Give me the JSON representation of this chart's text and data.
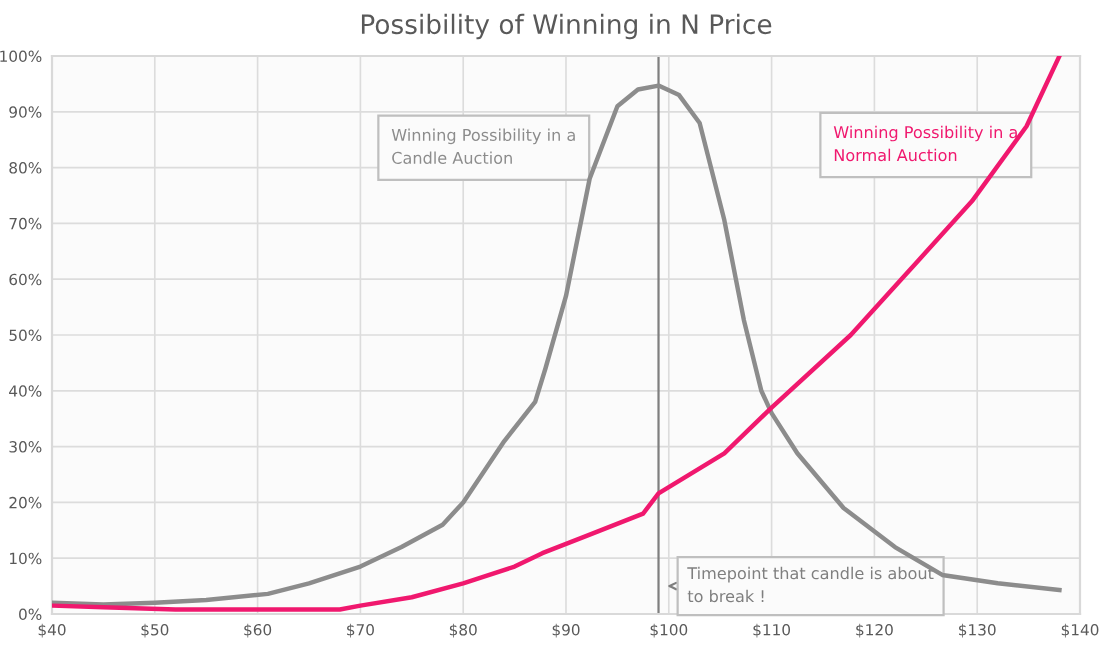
{
  "chart_data": {
    "type": "line",
    "title": "Possibility of Winning in N Price",
    "series": [
      {
        "name": "Winning Possibility in a Candle Auction",
        "color": "#8c8c8c",
        "x": [
          40,
          45,
          50,
          55,
          61,
          65,
          70,
          74,
          78,
          80,
          84,
          87,
          88,
          90,
          92.3,
          95,
          97,
          99,
          101,
          103,
          105.4,
          107.3,
          109,
          110,
          112.5,
          117,
          122,
          126.6,
          132,
          138
        ],
        "values": [
          2,
          1.7,
          2,
          2.5,
          3.6,
          5.5,
          8.5,
          12,
          16,
          20,
          31,
          38,
          44,
          57,
          78,
          91,
          94,
          94.7,
          93,
          88,
          70.6,
          52.7,
          40,
          36,
          28.8,
          19,
          12,
          7,
          5.5,
          4.3
        ]
      },
      {
        "name": "Winning Possibility in a Normal Auction",
        "color": "#f0186e",
        "x": [
          40,
          45,
          52,
          60,
          68,
          70,
          75,
          80,
          85,
          87.7,
          92,
          97.5,
          99,
          105.4,
          110,
          117.7,
          124.3,
          129.5,
          134.8,
          138
        ],
        "values": [
          1.5,
          1.2,
          0.8,
          0.8,
          0.8,
          1.5,
          3,
          5.5,
          8.5,
          10.9,
          14,
          18,
          21.6,
          28.8,
          37,
          50,
          63.4,
          74,
          87.4,
          100
        ]
      }
    ],
    "xlim": [
      40,
      140
    ],
    "ylim": [
      0,
      100
    ],
    "xticks": [
      {
        "value": 40,
        "label": "$40"
      },
      {
        "value": 50,
        "label": "$50"
      },
      {
        "value": 60,
        "label": "$60"
      },
      {
        "value": 70,
        "label": "$70"
      },
      {
        "value": 80,
        "label": "$80"
      },
      {
        "value": 90,
        "label": "$90"
      },
      {
        "value": 100,
        "label": "$100"
      },
      {
        "value": 110,
        "label": "$110"
      },
      {
        "value": 120,
        "label": "$120"
      },
      {
        "value": 130,
        "label": "$130"
      },
      {
        "value": 140,
        "label": "$140"
      }
    ],
    "yticks": [
      {
        "value": 0,
        "label": "0%"
      },
      {
        "value": 10,
        "label": "10%"
      },
      {
        "value": 20,
        "label": "20%"
      },
      {
        "value": 30,
        "label": "30%"
      },
      {
        "value": 40,
        "label": "40%"
      },
      {
        "value": 50,
        "label": "50%"
      },
      {
        "value": 60,
        "label": "60%"
      },
      {
        "value": 70,
        "label": "70%"
      },
      {
        "value": 80,
        "label": "80%"
      },
      {
        "value": 90,
        "label": "90%"
      },
      {
        "value": 100,
        "label": "100%"
      }
    ],
    "ref_lines": [
      {
        "axis": "x",
        "value": 99,
        "label": "Timepoint that candle is about to break !",
        "color": "#7f7f7f"
      }
    ],
    "grid": true,
    "legend": false,
    "line_style": "solid",
    "marker": "none"
  }
}
